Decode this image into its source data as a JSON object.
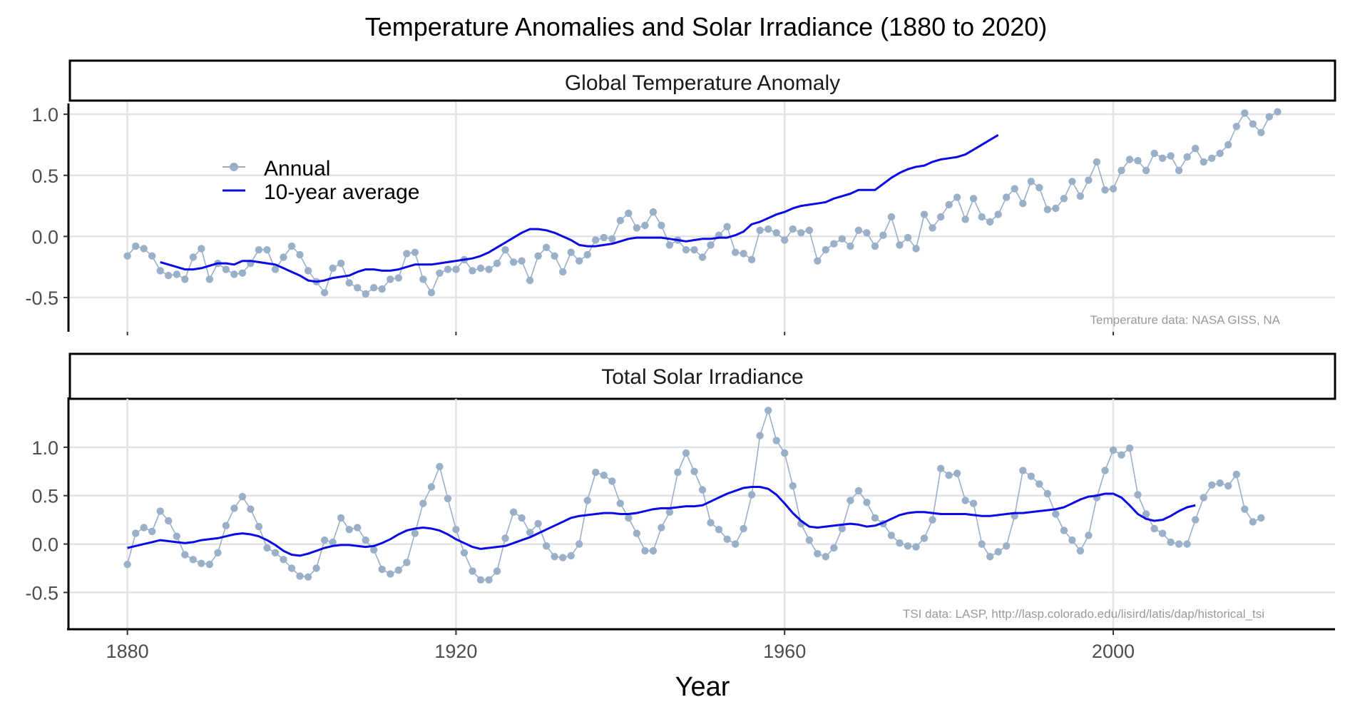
{
  "chart_data": {
    "type": "line",
    "title": "Temperature Anomalies and Solar Irradiance (1880 to 2020)",
    "xlabel": "Year",
    "xlim": [
      1873,
      2027
    ],
    "x_ticks": [
      1880,
      1920,
      1960,
      2000
    ],
    "x_tick_labels": [
      "1880",
      "1920",
      "1960",
      "2000"
    ],
    "grid": true,
    "legend": {
      "placement": "top-left",
      "entries": [
        "Annual",
        "10-year average"
      ]
    },
    "colors": {
      "annual": "#9AAFC8",
      "average": "#0A0AE6"
    },
    "panels": [
      {
        "title": "Global Temperature Anomaly",
        "ylim": [
          -0.78,
          1.1
        ],
        "y_ticks": [
          -0.5,
          0.0,
          0.5,
          1.0
        ],
        "y_tick_labels": [
          "-0.5",
          "0.0",
          "0.5",
          "1.0"
        ],
        "annotation": "Temperature data: NASA GISS, NA",
        "series": [
          {
            "name": "Annual",
            "x_start": 1880,
            "values": [
              -0.16,
              -0.08,
              -0.1,
              -0.16,
              -0.28,
              -0.32,
              -0.31,
              -0.35,
              -0.17,
              -0.1,
              -0.35,
              -0.22,
              -0.27,
              -0.31,
              -0.3,
              -0.22,
              -0.11,
              -0.11,
              -0.27,
              -0.17,
              -0.08,
              -0.15,
              -0.28,
              -0.37,
              -0.46,
              -0.26,
              -0.22,
              -0.38,
              -0.42,
              -0.47,
              -0.42,
              -0.43,
              -0.35,
              -0.34,
              -0.14,
              -0.13,
              -0.35,
              -0.46,
              -0.3,
              -0.27,
              -0.27,
              -0.19,
              -0.28,
              -0.26,
              -0.27,
              -0.22,
              -0.11,
              -0.21,
              -0.2,
              -0.36,
              -0.16,
              -0.09,
              -0.16,
              -0.29,
              -0.13,
              -0.2,
              -0.15,
              -0.03,
              -0.01,
              -0.02,
              0.13,
              0.19,
              0.07,
              0.09,
              0.2,
              0.09,
              -0.07,
              -0.03,
              -0.11,
              -0.11,
              -0.17,
              -0.07,
              0.01,
              0.08,
              -0.13,
              -0.14,
              -0.19,
              0.05,
              0.06,
              0.03,
              -0.03,
              0.06,
              0.03,
              0.05,
              -0.2,
              -0.11,
              -0.06,
              -0.02,
              -0.08,
              0.05,
              0.03,
              -0.08,
              0.01,
              0.16,
              -0.07,
              -0.01,
              -0.1,
              0.18,
              0.07,
              0.16,
              0.26,
              0.32,
              0.14,
              0.31,
              0.16,
              0.12,
              0.18,
              0.32,
              0.39,
              0.27,
              0.45,
              0.4,
              0.22,
              0.23,
              0.31,
              0.45,
              0.33,
              0.46,
              0.61,
              0.38,
              0.39,
              0.54,
              0.63,
              0.62,
              0.54,
              0.68,
              0.64,
              0.66,
              0.54,
              0.65,
              0.72,
              0.61,
              0.64,
              0.68,
              0.75,
              0.9,
              1.01,
              0.92,
              0.85,
              0.98,
              1.02
            ]
          },
          {
            "name": "10-year average",
            "x_start": 1884,
            "values": [
              -0.21,
              -0.23,
              -0.25,
              -0.27,
              -0.27,
              -0.26,
              -0.24,
              -0.22,
              -0.22,
              -0.23,
              -0.2,
              -0.2,
              -0.21,
              -0.22,
              -0.23,
              -0.26,
              -0.29,
              -0.32,
              -0.36,
              -0.37,
              -0.36,
              -0.34,
              -0.33,
              -0.32,
              -0.29,
              -0.27,
              -0.27,
              -0.28,
              -0.28,
              -0.27,
              -0.25,
              -0.23,
              -0.23,
              -0.23,
              -0.22,
              -0.21,
              -0.2,
              -0.19,
              -0.18,
              -0.16,
              -0.13,
              -0.09,
              -0.05,
              -0.01,
              0.03,
              0.06,
              0.06,
              0.05,
              0.03,
              0.0,
              -0.03,
              -0.07,
              -0.08,
              -0.08,
              -0.07,
              -0.06,
              -0.04,
              -0.02,
              -0.01,
              -0.01,
              -0.01,
              -0.01,
              -0.02,
              -0.03,
              -0.04,
              -0.03,
              -0.02,
              -0.02,
              -0.01,
              -0.01,
              0.01,
              0.04,
              0.1,
              0.12,
              0.15,
              0.18,
              0.2,
              0.23,
              0.25,
              0.26,
              0.27,
              0.28,
              0.31,
              0.33,
              0.35,
              0.38,
              0.38,
              0.38,
              0.43,
              0.48,
              0.52,
              0.55,
              0.57,
              0.58,
              0.61,
              0.63,
              0.64,
              0.65,
              0.67,
              0.71,
              0.75,
              0.79,
              0.83
            ]
          }
        ]
      },
      {
        "title": "Total Solar Irradiance",
        "ylim": [
          -0.88,
          1.5
        ],
        "y_ticks": [
          -0.5,
          0.0,
          0.5,
          1.0
        ],
        "y_tick_labels": [
          "-0.5",
          "0.0",
          "0.5",
          "1.0"
        ],
        "annotation": "TSI  data: LASP, http://lasp.colorado.edu/lisird/latis/dap/historical_tsi",
        "series": [
          {
            "name": "Annual",
            "x_start": 1880,
            "values": [
              -0.21,
              0.11,
              0.17,
              0.13,
              0.34,
              0.24,
              0.08,
              -0.11,
              -0.16,
              -0.2,
              -0.21,
              -0.09,
              0.19,
              0.37,
              0.49,
              0.36,
              0.18,
              -0.04,
              -0.09,
              -0.16,
              -0.25,
              -0.33,
              -0.34,
              -0.25,
              0.04,
              0.02,
              0.27,
              0.15,
              0.17,
              0.04,
              -0.06,
              -0.26,
              -0.31,
              -0.27,
              -0.19,
              0.11,
              0.42,
              0.59,
              0.8,
              0.47,
              0.15,
              -0.09,
              -0.28,
              -0.37,
              -0.37,
              -0.28,
              0.06,
              0.33,
              0.27,
              0.12,
              0.21,
              -0.02,
              -0.13,
              -0.14,
              -0.12,
              0.0,
              0.45,
              0.74,
              0.71,
              0.65,
              0.42,
              0.27,
              0.11,
              -0.07,
              -0.07,
              0.17,
              0.33,
              0.74,
              0.94,
              0.75,
              0.56,
              0.22,
              0.15,
              0.05,
              0.0,
              0.16,
              0.51,
              1.12,
              1.38,
              1.07,
              0.94,
              0.6,
              0.21,
              0.04,
              -0.1,
              -0.13,
              -0.04,
              0.16,
              0.45,
              0.55,
              0.43,
              0.27,
              0.21,
              0.09,
              0.01,
              -0.02,
              -0.03,
              0.06,
              0.25,
              0.78,
              0.71,
              0.73,
              0.45,
              0.42,
              0.0,
              -0.13,
              -0.08,
              -0.02,
              0.29,
              0.76,
              0.7,
              0.62,
              0.52,
              0.31,
              0.14,
              0.04,
              -0.07,
              0.09,
              0.48,
              0.76,
              0.97,
              0.92,
              0.99,
              0.51,
              0.31,
              0.16,
              0.11,
              0.02,
              0.0,
              0.0,
              0.25,
              0.48,
              0.61,
              0.63,
              0.6,
              0.72,
              0.36,
              0.23,
              0.27
            ]
          },
          {
            "name": "10-year average",
            "x_start": 1880,
            "values": [
              -0.04,
              -0.02,
              0.0,
              0.02,
              0.04,
              0.03,
              0.02,
              0.01,
              0.02,
              0.04,
              0.05,
              0.06,
              0.08,
              0.1,
              0.11,
              0.1,
              0.08,
              0.04,
              -0.01,
              -0.07,
              -0.11,
              -0.12,
              -0.1,
              -0.07,
              -0.04,
              -0.02,
              -0.01,
              -0.01,
              -0.02,
              -0.03,
              -0.02,
              0.01,
              0.05,
              0.1,
              0.14,
              0.16,
              0.17,
              0.16,
              0.14,
              0.1,
              0.05,
              0.01,
              -0.03,
              -0.05,
              -0.04,
              -0.03,
              -0.02,
              0.01,
              0.04,
              0.07,
              0.11,
              0.15,
              0.19,
              0.23,
              0.27,
              0.29,
              0.3,
              0.31,
              0.32,
              0.32,
              0.31,
              0.31,
              0.32,
              0.34,
              0.36,
              0.37,
              0.37,
              0.38,
              0.39,
              0.39,
              0.4,
              0.44,
              0.48,
              0.52,
              0.55,
              0.58,
              0.59,
              0.59,
              0.57,
              0.51,
              0.42,
              0.32,
              0.24,
              0.18,
              0.17,
              0.18,
              0.19,
              0.2,
              0.21,
              0.2,
              0.18,
              0.19,
              0.22,
              0.26,
              0.3,
              0.32,
              0.33,
              0.33,
              0.32,
              0.31,
              0.31,
              0.31,
              0.31,
              0.3,
              0.29,
              0.29,
              0.3,
              0.31,
              0.32,
              0.32,
              0.33,
              0.34,
              0.35,
              0.36,
              0.38,
              0.42,
              0.46,
              0.49,
              0.5,
              0.52,
              0.52,
              0.48,
              0.4,
              0.31,
              0.26,
              0.24,
              0.25,
              0.29,
              0.34,
              0.38,
              0.4
            ]
          }
        ]
      }
    ]
  }
}
